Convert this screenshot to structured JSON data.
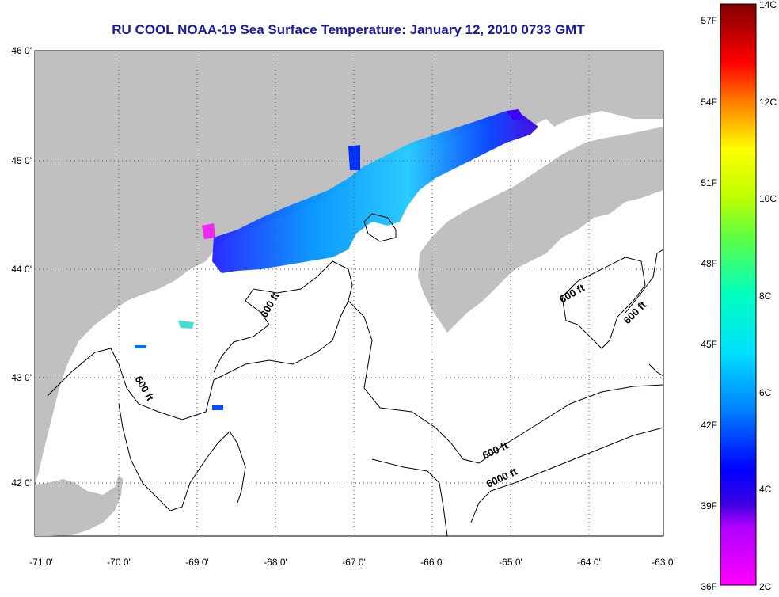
{
  "title": "RU COOL  NOAA-19  Sea Surface Temperature:  January 12, 2010 0733 GMT",
  "map": {
    "lat_labels": [
      "46 0'",
      "45 0'",
      "44 0'",
      "43 0'",
      "42 0'"
    ],
    "lon_labels": [
      "-71 0'",
      "-70 0'",
      "-69 0'",
      "-68 0'",
      "-67 0'",
      "-66 0'",
      "-65 0'",
      "-64 0'",
      "-63 0'"
    ],
    "contour_labels": [
      "600 ft",
      "600 ft",
      "600 ft",
      "600 ft",
      "600 ft",
      "6000 ft"
    ],
    "colors": {
      "land": "#c0c0c0",
      "ocean": "#ffffff",
      "grid": "#555555"
    }
  },
  "colorbar": {
    "fahrenheit_labels": [
      "57F",
      "54F",
      "51F",
      "48F",
      "45F",
      "42F",
      "39F",
      "36F"
    ],
    "celsius_labels": [
      "14C",
      "12C",
      "10C",
      "8C",
      "6C",
      "4C",
      "2C"
    ],
    "range_c": [
      2,
      14
    ],
    "range_f": [
      36,
      57
    ]
  }
}
